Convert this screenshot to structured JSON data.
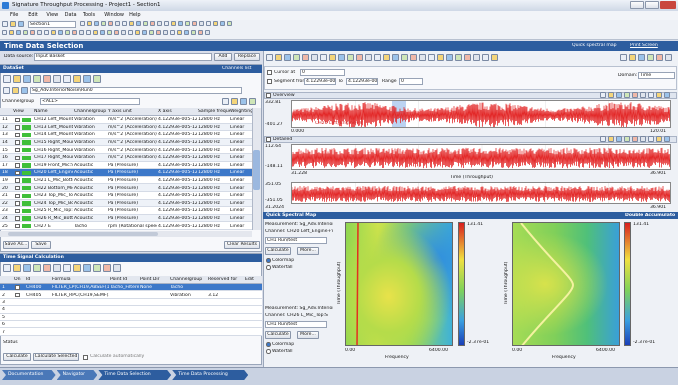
{
  "window": {
    "title": "Signature Throughput Processing - Project1 - Section1",
    "menu": [
      "File",
      "Edit",
      "View",
      "Data",
      "Tools",
      "Window",
      "Help"
    ],
    "section": "Section1"
  },
  "page": {
    "title": "Time Data Selection",
    "links": [
      "Quick spectral map",
      "Print Screen"
    ],
    "data_source_label": "Data source:",
    "data_source": "Input Basket",
    "buttons": [
      "Add",
      "Replace"
    ]
  },
  "dataset": {
    "title": "DataSet",
    "channels_link": "Channels list",
    "path": "Sg_Adv.InteriorNoise\\Run0",
    "channelgroup_label": "Channelgroup",
    "channelgroup": "<ALL>",
    "columns": [
      "View",
      "Name",
      "Channelgroup",
      "Y axis unit",
      "X axis",
      "Sample frequency",
      "Weighting"
    ],
    "rows": [
      [
        "11",
        "CH12 Left_Mount+X",
        "Vibration",
        "m/s^2 (Acceleration)",
        "4.12293e-005-120.1",
        "12800 Hz",
        "Linear"
      ],
      [
        "12",
        "CH13 Left_Mount+Y",
        "Vibration",
        "m/s^2 (Acceleration)",
        "4.12293e-005-120.1",
        "12800 Hz",
        "Linear"
      ],
      [
        "13",
        "CH14 Left_Mount+Z",
        "Vibration",
        "m/s^2 (Acceleration)",
        "4.12293e-005-120.1",
        "12800 Hz",
        "Linear"
      ],
      [
        "14",
        "CH15 Right_Mount+X",
        "Vibration",
        "m/s^2 (Acceleration)",
        "4.12293e-005-120.1",
        "12800 Hz",
        "Linear"
      ],
      [
        "15",
        "CH16 Right_Mount+Y",
        "Vibration",
        "m/s^2 (Acceleration)",
        "4.12293e-005-120.1",
        "12800 Hz",
        "Linear"
      ],
      [
        "16",
        "CH17 Right_Mount+Z",
        "Vibration",
        "m/s^2 (Acceleration)",
        "4.12293e-005-120.1",
        "12800 Hz",
        "Linear"
      ],
      [
        "17",
        "CH19 Front_Mic:S",
        "Acoustic",
        "Pa (Pressure)",
        "4.12293e-005-120.1",
        "12800 Hz",
        "Linear"
      ],
      [
        "18",
        "CH20 Left_Engine+V",
        "Acoustic",
        "Pa (Pressure)",
        "4.12293e-005-120.1",
        "12800 Hz",
        "Linear"
      ],
      [
        "19",
        "CH21 L_Mic_Bottom:S",
        "Acoustic",
        "Pa (Pressure)",
        "4.12293e-005-120.1",
        "12800 Hz",
        "Linear"
      ],
      [
        "20",
        "CH22 Bottom_Mic:S",
        "Acoustic",
        "Pa (Pressure)",
        "4.12293e-005-120.1",
        "12800 Hz",
        "Linear"
      ],
      [
        "21",
        "CH23 Top_Mic_Top:S",
        "Acoustic",
        "Pa (Pressure)",
        "4.12293e-005-120.1",
        "12800 Hz",
        "Linear"
      ],
      [
        "22",
        "CH24 Top_Mic_Bottom",
        "Acoustic",
        "Pa (Pressure)",
        "4.12293e-005-120.1",
        "12800 Hz",
        "Linear"
      ],
      [
        "23",
        "CH25 R_Mic_Top:S",
        "Acoustic",
        "Pa (Pressure)",
        "4.12293e-005-120.1",
        "12800 Hz",
        "Linear"
      ],
      [
        "24",
        "CH26 R_Mic_Bottom:S",
        "Acoustic",
        "Pa (Pressure)",
        "4.12293e-005-120.1",
        "12800 Hz",
        "Linear"
      ],
      [
        "25",
        "CH27 E",
        "Tacho",
        "rpm (Rotational speed)",
        "4.12293e-005-120.1",
        "12800 Hz",
        "Linear"
      ]
    ],
    "selected_row": 7,
    "buttons": [
      "Save As...",
      "Save",
      "Clear Results"
    ]
  },
  "calc": {
    "title": "Time Signal Calculation",
    "columns": [
      "On",
      "Id",
      "Formula",
      "Point Id",
      "Point Dir",
      "Channelgroup",
      "Reserved for",
      "Edit"
    ],
    "rows": [
      [
        "1",
        "CH400",
        "FILTER_LP(CH19,ABSEF(1))",
        "Tacho_Filtered",
        "None",
        "Tacho",
        ""
      ],
      [
        "2",
        "CH405",
        "FILTER_RPC(CH19,SEMF(1))",
        "",
        "",
        "Vibration",
        "3.12"
      ],
      [
        "3"
      ],
      [
        "4"
      ],
      [
        "5"
      ],
      [
        "6"
      ],
      [
        "7"
      ]
    ],
    "status": "Status",
    "buttons": [
      "Calculate",
      "Calculate Selected"
    ],
    "auto": "Calculate automatically"
  },
  "cursor": {
    "cursor_label": "Cursor at",
    "cursor": "0",
    "segment_label": "Segment from",
    "from": "4.12293e-005",
    "to_label": "To",
    "to": "4.12293e-005",
    "range_label": "Range",
    "range": "0",
    "domain_label": "Domain:",
    "domain": "Time"
  },
  "overview": {
    "title": "Overview",
    "ymax": "332.81",
    "ymin": "-401.27",
    "xmin": "0.000",
    "xmax": "120.01",
    "legend": "CH20 Left_Engine+V"
  },
  "detailed": {
    "title": "Detailed",
    "ymax": "112.64",
    "ymin": "-148.11",
    "xmin": "31.228",
    "xmax": "36.901",
    "xlabel": "Time (Throughput)",
    "ymax2": "351.05",
    "ymin2": "-351.05",
    "xmin2": "31.2024",
    "xmax2": "36.901"
  },
  "spectral": {
    "title": "Quick Spectral Map",
    "right_title": "Double Accumulator",
    "blocks": [
      {
        "measurement": "Measurement: Sg_Adv.InteriorNoi",
        "channel": "Channel: CH20 Left_Engine+V",
        "run": "CH1 Run/test",
        "buttons": [
          "Calculate",
          "More..."
        ],
        "modes": [
          "Colormap",
          "Waterfall"
        ]
      },
      {
        "measurement": "Measurement: Sg_Adv.InteriorNoi",
        "channel": "Channel: CH26 L_Mic_Top:S",
        "run": "CH1 Run/test",
        "buttons": [
          "Calculate",
          "More..."
        ],
        "modes": [
          "Colormap",
          "Waterfall"
        ]
      }
    ],
    "maps": [
      {
        "ylabel": "Time (Throughput)",
        "xlabel": "Frequency",
        "xmin": "0.00",
        "xmax": "6400.00",
        "cmax": "131.41",
        "cmin": "-2.37e-01"
      },
      {
        "ylabel": "Time (Throughput)",
        "xlabel": "Frequency",
        "xmin": "0.00",
        "xmax": "6400.00",
        "cmax": "131.41",
        "cmin": "-2.37e-01"
      }
    ]
  },
  "nav": [
    "Documentation",
    "Navigator",
    "Time Data Selection",
    "Time Data Processing"
  ]
}
